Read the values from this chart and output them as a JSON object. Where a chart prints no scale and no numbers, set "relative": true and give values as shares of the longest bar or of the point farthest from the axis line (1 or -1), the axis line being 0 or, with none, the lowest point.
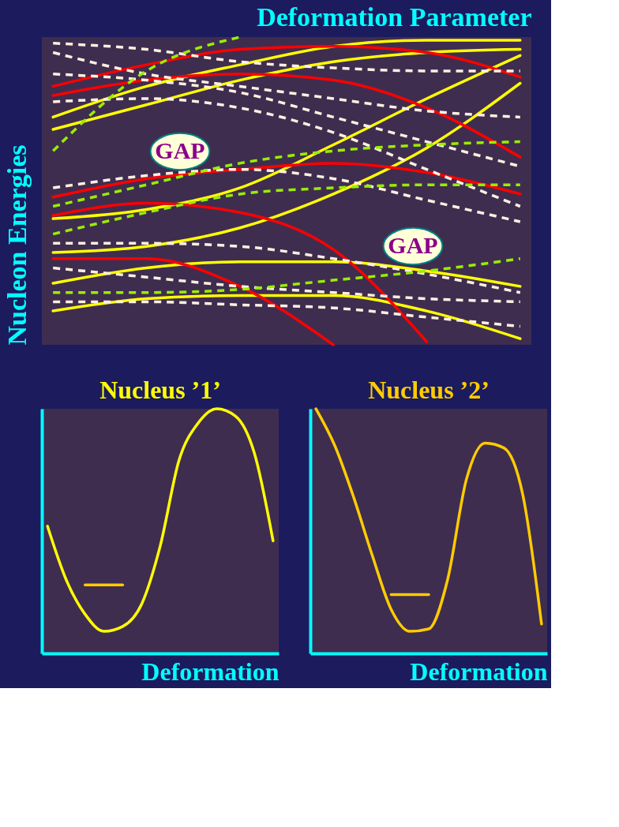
{
  "chart_data": [
    {
      "type": "line",
      "relative": true,
      "xlabel": "Deformation Parameter",
      "ylabel": "Nucleon Energies",
      "categories": [
        null,
        null,
        null,
        null,
        null,
        null
      ],
      "annotations": [
        "GAP",
        "GAP"
      ],
      "series": [
        {
          "color": "#ffff00",
          "values": [
            0.74,
            0.84,
            0.91,
            0.97,
            0.99,
            0.99
          ]
        },
        {
          "color": "#ffff00",
          "values": [
            0.7,
            0.78,
            0.86,
            0.92,
            0.95,
            0.96
          ]
        },
        {
          "color": "#ffff00",
          "values": [
            0.41,
            0.44,
            0.51,
            0.65,
            0.8,
            0.94
          ]
        },
        {
          "color": "#ffff00",
          "values": [
            0.3,
            0.32,
            0.38,
            0.49,
            0.64,
            0.85
          ]
        },
        {
          "color": "#ffff00",
          "values": [
            0.2,
            0.25,
            0.27,
            0.27,
            0.24,
            0.19
          ]
        },
        {
          "color": "#ffff00",
          "values": [
            0.11,
            0.15,
            0.16,
            0.16,
            0.11,
            0.02
          ]
        },
        {
          "color": "#ff0000",
          "values": [
            0.84,
            0.91,
            0.96,
            0.97,
            0.95,
            0.87
          ]
        },
        {
          "color": "#ff0000",
          "values": [
            0.81,
            0.86,
            0.88,
            0.86,
            0.77,
            0.61
          ]
        },
        {
          "color": "#ff0000",
          "values": [
            0.48,
            0.54,
            0.57,
            0.59,
            0.56,
            0.49
          ]
        },
        {
          "color": "#ff0000",
          "values": [
            0.42,
            0.46,
            0.43,
            0.31,
            0.01,
            null
          ]
        },
        {
          "color": "#ff0000",
          "values": [
            0.28,
            0.28,
            0.19,
            0.0,
            null,
            null
          ]
        },
        {
          "color": "#fff0e0",
          "line_style": "dashed",
          "values": [
            0.98,
            0.96,
            0.92,
            0.9,
            0.89,
            0.89
          ]
        },
        {
          "color": "#fff0e0",
          "line_style": "dashed",
          "values": [
            0.95,
            0.88,
            0.84,
            0.8,
            0.76,
            0.74
          ]
        },
        {
          "color": "#fff0e0",
          "line_style": "dashed",
          "values": [
            0.88,
            0.86,
            0.82,
            0.74,
            0.66,
            0.58
          ]
        },
        {
          "color": "#fff0e0",
          "line_style": "dashed",
          "values": [
            0.79,
            0.8,
            0.77,
            0.69,
            0.57,
            0.45
          ]
        },
        {
          "color": "#fff0e0",
          "line_style": "dashed",
          "values": [
            0.51,
            0.55,
            0.57,
            0.54,
            0.47,
            0.4
          ]
        },
        {
          "color": "#fff0e0",
          "line_style": "dashed",
          "values": [
            0.33,
            0.33,
            0.32,
            0.28,
            0.23,
            0.17
          ]
        },
        {
          "color": "#fff0e0",
          "line_style": "dashed",
          "values": [
            0.25,
            0.22,
            0.19,
            0.17,
            0.15,
            0.14
          ]
        },
        {
          "color": "#fff0e0",
          "line_style": "dashed",
          "values": [
            0.14,
            0.14,
            0.13,
            0.12,
            0.09,
            0.06
          ]
        },
        {
          "color": "#99ee00",
          "line_style": "dashed",
          "values": [
            0.63,
            0.89,
            1.0,
            null,
            null,
            null
          ]
        },
        {
          "color": "#99ee00",
          "line_style": "dashed",
          "values": [
            0.45,
            0.52,
            0.59,
            0.63,
            0.65,
            0.66
          ]
        },
        {
          "color": "#99ee00",
          "line_style": "dashed",
          "values": [
            0.36,
            0.43,
            0.49,
            0.51,
            0.52,
            0.52
          ]
        },
        {
          "color": "#99ee00",
          "line_style": "dashed",
          "values": [
            0.17,
            0.17,
            0.18,
            0.21,
            0.24,
            0.28
          ]
        }
      ]
    },
    {
      "type": "line",
      "relative": true,
      "title": "Nucleus ’1’",
      "xlabel": "Deformation",
      "categories": [
        null,
        null,
        null,
        null,
        null,
        null,
        null,
        null,
        null,
        null,
        null,
        null,
        null
      ],
      "series": [
        {
          "color": "#ffff00",
          "values": [
            0.52,
            0.3,
            0.16,
            0.09,
            0.11,
            0.2,
            0.44,
            0.79,
            0.94,
            1.0,
            0.97,
            0.82,
            0.46
          ]
        },
        {
          "color": "#ffcc00",
          "values": [
            null,
            null,
            0.28,
            0.28,
            0.28,
            null,
            null,
            null,
            null,
            null,
            null,
            null,
            null
          ]
        }
      ]
    },
    {
      "type": "line",
      "relative": true,
      "title": "Nucleus ’2’",
      "xlabel": "Deformation",
      "categories": [
        null,
        null,
        null,
        null,
        null,
        null,
        null,
        null,
        null,
        null,
        null,
        null,
        null
      ],
      "series": [
        {
          "color": "#ffcc00",
          "values": [
            1.0,
            0.85,
            0.64,
            0.4,
            0.18,
            0.09,
            0.1,
            0.3,
            0.71,
            0.86,
            0.84,
            0.65,
            0.12
          ]
        },
        {
          "color": "#ffcc00",
          "values": [
            null,
            null,
            null,
            null,
            0.24,
            0.24,
            0.24,
            null,
            null,
            null,
            null,
            null,
            null
          ]
        }
      ]
    }
  ]
}
